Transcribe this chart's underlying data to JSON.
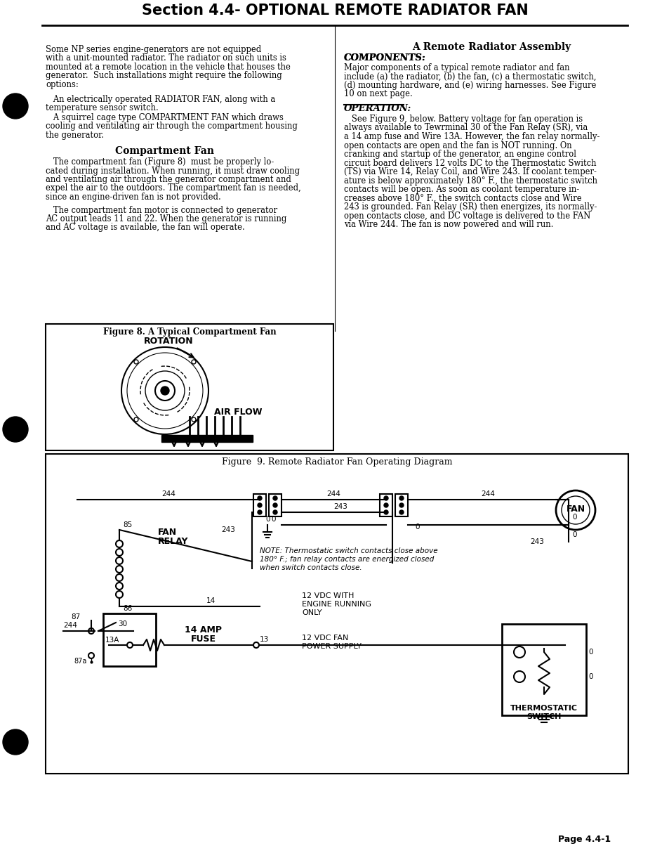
{
  "title": "Section 4.4- OPTIONAL REMOTE RADIATOR FAN",
  "bg_color": "#ffffff",
  "text_color": "#000000",
  "left_col_text": [
    "Some NP series engine-generators are not equipped with a unit-mounted radiator. The radiator on such units is mounted at a remote location in the vehicle that houses the generator.  Such installations might require the following options:",
    "",
    "   An electrically operated RADIATOR FAN, along with a temperature sensor switch.",
    "   A squirrel cage type COMPARTMENT FAN which draws cooling and ventilating air through the compartment housing the generator."
  ],
  "right_col_title1": "A Remote Radiator Assembly",
  "right_col_title2": "COMPONENTS:",
  "right_col_text1": "Major components of a typical remote radiator and fan include (a) the radiator, (b) the fan, (c) a thermostatic switch, (d) mounting hardware, and (e) wiring harnesses. See Figure 10 on next page.",
  "right_col_title3": "OPERATION:",
  "right_col_text2": "See Figure 9, below. Battery voltage for fan operation is always available to Terminal 30 of the Fan Relay (SR), via a 14 amp fuse and Wire 13A. However, the fan relay normally-open contacts are open and the fan is NOT running. On cranking and startup of the generator, an engine control circuit board delivers 12 volts DC to the Thermostatic Switch (TS) via Wire 14, Relay Coil, and Wire 243. If coolant temperature is below approximately 180° F., the thermostatic switch contacts will be open. As soon as coolant temperature increases above 180° F., the switch contacts close and Wire 243 is grounded. Fan Relay (SR) then energizes, its normally-open contacts close, and DC voltage is delivered to the FAN via Wire 244. The fan is now powered and will run.",
  "comp_fan_title": "Compartment Fan",
  "comp_fan_text1": "The compartment fan (Figure 8)  must be properly located during installation. When running, it must draw cooling and ventilating air through the generator compartment and expel the air to the outdoors. The compartment fan is needed, since an engine-driven fan is not provided.",
  "comp_fan_text2": "The compartment fan motor is connected to generator AC output leads 11 and 22. When the generator is running and AC voltage is available, the fan will operate.",
  "fig8_title": "Figure 8. A Typical Compartment Fan",
  "fig9_title": "Figure  9. Remote Radiator Fan Operating Diagram",
  "page_label": "Page 4.4-1"
}
